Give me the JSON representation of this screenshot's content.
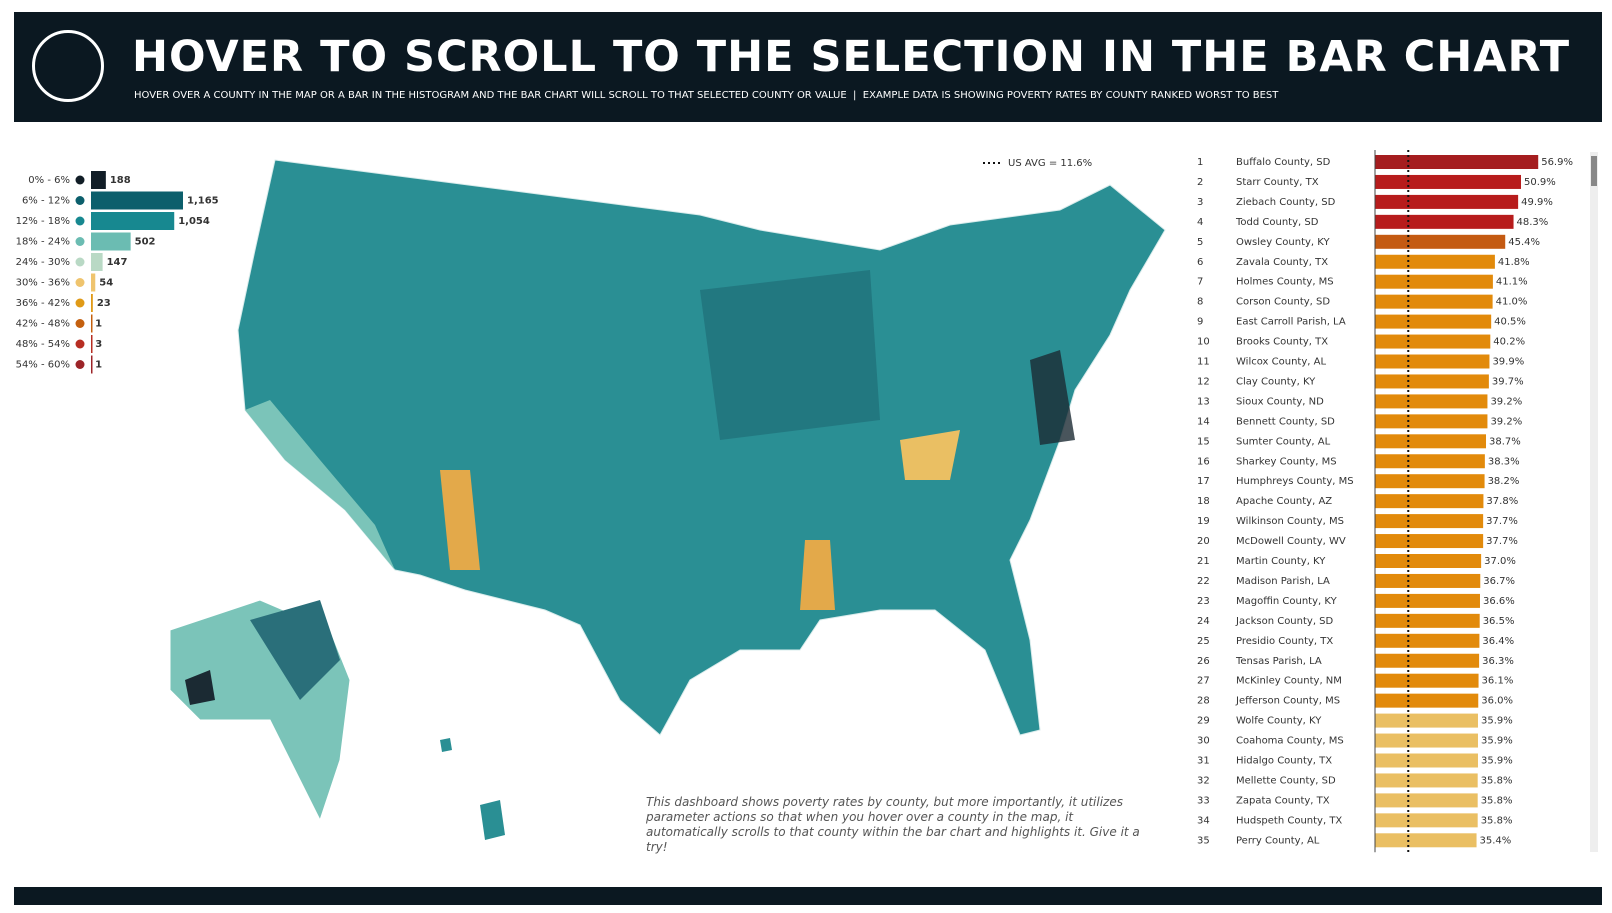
{
  "header": {
    "title": "HOVER TO SCROLL TO THE SELECTION IN THE BAR CHART",
    "subtitle": "HOVER OVER A COUNTY IN THE MAP OR A BAR IN THE HISTOGRAM AND THE BAR CHART WILL SCROLL TO THAT SELECTED COUNTY OR VALUE  |  EXAMPLE DATA IS SHOWING POVERTY RATES BY COUNTY RANKED WORST TO BEST"
  },
  "note": "This dashboard shows poverty rates by county, but more importantly, it utilizes parameter actions so that when you hover over a county in the map, it automatically scrolls to that county within the bar chart and highlights it. Give it a try!",
  "chart_data": [
    {
      "type": "hbar",
      "categories": [
        "0% - 6%",
        "6% - 12%",
        "12% - 18%",
        "18% - 24%",
        "24% - 30%",
        "30% - 36%",
        "36% - 42%",
        "42% - 48%",
        "48% - 54%",
        "54% - 60%"
      ],
      "values": [
        188,
        1165,
        1054,
        502,
        147,
        54,
        23,
        1,
        3,
        1
      ],
      "value_labels": [
        "188",
        "1,165",
        "1,054",
        "502",
        "147",
        "54",
        "23",
        "1",
        "3",
        "1"
      ],
      "colors": [
        "#111d26",
        "#0c5f6c",
        "#178890",
        "#6bbcb2",
        "#b9d9c5",
        "#efc46e",
        "#e09a17",
        "#c4600f",
        "#b72e22",
        "#9c2428"
      ],
      "xlim": [
        0,
        1165
      ]
    },
    {
      "type": "ranked-bar",
      "ranks": [
        1,
        2,
        3,
        4,
        5,
        6,
        7,
        8,
        9,
        10,
        11,
        12,
        13,
        14,
        15,
        16,
        17,
        18,
        19,
        20,
        21,
        22,
        23,
        24,
        25,
        26,
        27,
        28,
        29,
        30,
        31,
        32,
        33,
        34,
        35
      ],
      "categories": [
        "Buffalo County, SD",
        "Starr County, TX",
        "Ziebach County, SD",
        "Todd County, SD",
        "Owsley County, KY",
        "Zavala County, TX",
        "Holmes County, MS",
        "Corson County, SD",
        "East Carroll Parish, LA",
        "Brooks County, TX",
        "Wilcox County, AL",
        "Clay County, KY",
        "Sioux County, ND",
        "Bennett County, SD",
        "Sumter County, AL",
        "Sharkey County, MS",
        "Humphreys County, MS",
        "Apache County, AZ",
        "Wilkinson County, MS",
        "McDowell County, WV",
        "Martin County, KY",
        "Madison Parish, LA",
        "Magoffin County, KY",
        "Jackson County, SD",
        "Presidio County, TX",
        "Tensas Parish, LA",
        "McKinley County, NM",
        "Jefferson County, MS",
        "Wolfe County, KY",
        "Coahoma County, MS",
        "Hidalgo County, TX",
        "Mellette County, SD",
        "Zapata County, TX",
        "Hudspeth County, TX",
        "Perry County, AL"
      ],
      "values": [
        56.9,
        50.9,
        49.9,
        48.3,
        45.4,
        41.8,
        41.1,
        41.0,
        40.5,
        40.2,
        39.9,
        39.7,
        39.2,
        39.2,
        38.7,
        38.3,
        38.2,
        37.8,
        37.7,
        37.7,
        37.0,
        36.7,
        36.6,
        36.5,
        36.4,
        36.3,
        36.1,
        36.0,
        35.9,
        35.9,
        35.9,
        35.8,
        35.8,
        35.8,
        35.4
      ],
      "value_labels": [
        "56.9%",
        "50.9%",
        "49.9%",
        "48.3%",
        "45.4%",
        "41.8%",
        "41.1%",
        "41.0%",
        "40.5%",
        "40.2%",
        "39.9%",
        "39.7%",
        "39.2%",
        "39.2%",
        "38.7%",
        "38.3%",
        "38.2%",
        "37.8%",
        "37.7%",
        "37.7%",
        "37.0%",
        "36.7%",
        "36.6%",
        "36.5%",
        "36.4%",
        "36.3%",
        "36.1%",
        "36.0%",
        "35.9%",
        "35.9%",
        "35.9%",
        "35.8%",
        "35.8%",
        "35.8%",
        "35.4%"
      ],
      "colors": [
        "#a51d1f",
        "#b71c1c",
        "#b71c1c",
        "#b71c1c",
        "#c45a12",
        "#e28a0b",
        "#e28a0b",
        "#e28a0b",
        "#e28a0b",
        "#e28a0b",
        "#e28a0b",
        "#e28a0b",
        "#e28a0b",
        "#e28a0b",
        "#e28a0b",
        "#e28a0b",
        "#e28a0b",
        "#e28a0b",
        "#e28a0b",
        "#e28a0b",
        "#e28a0b",
        "#e28a0b",
        "#e28a0b",
        "#e28a0b",
        "#e28a0b",
        "#e28a0b",
        "#e28a0b",
        "#e28a0b",
        "#eabf63",
        "#eabf63",
        "#eabf63",
        "#eabf63",
        "#eabf63",
        "#eabf63",
        "#eabf63"
      ],
      "xlim": [
        0,
        57
      ],
      "reference": 11.6,
      "reference_label": "US AVG = 11.6%"
    }
  ]
}
